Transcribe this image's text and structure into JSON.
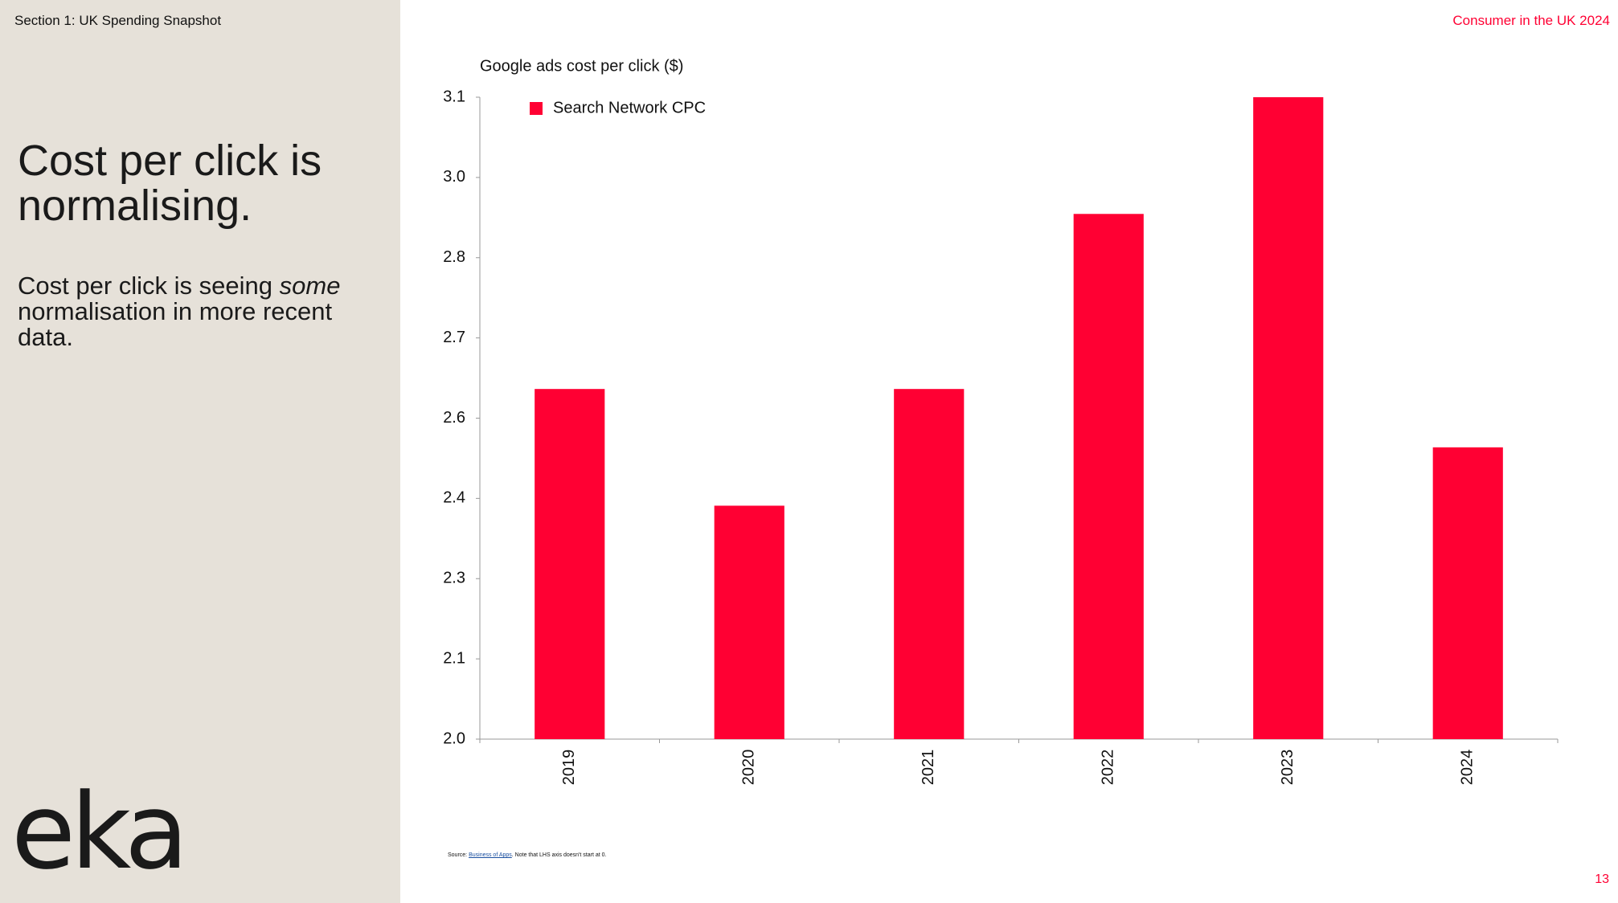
{
  "section": "Section 1: UK Spending Snapshot",
  "report": "Consumer in the UK 2024",
  "heading": "Cost per click is normalising.",
  "body": {
    "before": "Cost per click is seeing ",
    "emphasis": "some",
    "after": " normalisation in more recent data."
  },
  "source": {
    "prefix": "Source: ",
    "link": "Business of Apps",
    "note": ". Note that LHS axis doesn't start at 0."
  },
  "page_number": "13",
  "logo": "eka",
  "chart_data": {
    "type": "bar",
    "title": "Google ads cost per click ($)",
    "categories": [
      "2019",
      "2020",
      "2021",
      "2022",
      "2023",
      "2024"
    ],
    "series": [
      {
        "name": "Search Network CPC",
        "color": "#ff0033",
        "values": [
          2.6,
          2.4,
          2.6,
          2.9,
          3.1,
          2.5
        ]
      }
    ],
    "ylim": [
      2.0,
      3.1
    ],
    "yticks": [
      {
        "value": 2.0,
        "label": "2.0"
      },
      {
        "value": 2.1375,
        "label": "2.1"
      },
      {
        "value": 2.275,
        "label": "2.3"
      },
      {
        "value": 2.4125,
        "label": "2.4"
      },
      {
        "value": 2.55,
        "label": "2.6"
      },
      {
        "value": 2.6875,
        "label": "2.7"
      },
      {
        "value": 2.825,
        "label": "2.8"
      },
      {
        "value": 2.9625,
        "label": "3.0"
      },
      {
        "value": 3.1,
        "label": "3.1"
      }
    ],
    "grid": false,
    "legend": "top-left"
  }
}
